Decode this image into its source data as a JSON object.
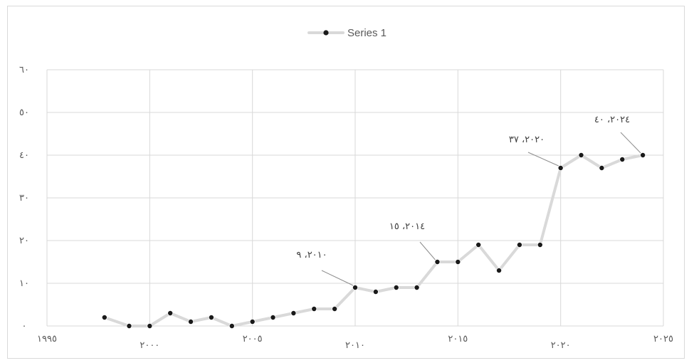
{
  "chart_data": {
    "type": "line",
    "title": "",
    "xlabel": "",
    "ylabel": "",
    "legend": {
      "placement": "top-center",
      "entries": [
        "Series 1"
      ]
    },
    "grid": true,
    "xlim": [
      1995,
      2025
    ],
    "ylim": [
      0,
      60
    ],
    "x_ticks": [
      1995,
      2000,
      2005,
      2010,
      2015,
      2020,
      2025
    ],
    "x_tick_labels": [
      "١٩٩٥",
      "٢٠٠٠",
      "٢٠٠٥",
      "٢٠١٠",
      "٢٠١٥",
      "٢٠٢٠",
      "٢٠٢٥"
    ],
    "y_ticks": [
      0,
      10,
      20,
      30,
      40,
      50,
      60
    ],
    "y_tick_labels": [
      "٠",
      "١٠",
      "٢٠",
      "٣٠",
      "٤٠",
      "٥٠",
      "٦٠"
    ],
    "colors": {
      "line": "#d9d9d9",
      "marker": "#1a1a1a",
      "grid": "#d9d9d9",
      "text": "#595959"
    },
    "series": [
      {
        "name": "Series 1",
        "points": [
          {
            "x": 1997.8,
            "y": 2
          },
          {
            "x": 1999,
            "y": 0
          },
          {
            "x": 2000,
            "y": 0
          },
          {
            "x": 2001,
            "y": 3
          },
          {
            "x": 2002,
            "y": 1
          },
          {
            "x": 2003,
            "y": 2
          },
          {
            "x": 2004,
            "y": 0
          },
          {
            "x": 2005,
            "y": 1
          },
          {
            "x": 2006,
            "y": 2
          },
          {
            "x": 2007,
            "y": 3
          },
          {
            "x": 2008,
            "y": 4
          },
          {
            "x": 2009,
            "y": 4
          },
          {
            "x": 2010,
            "y": 9
          },
          {
            "x": 2011,
            "y": 8
          },
          {
            "x": 2012,
            "y": 9
          },
          {
            "x": 2013,
            "y": 9
          },
          {
            "x": 2014,
            "y": 15
          },
          {
            "x": 2015,
            "y": 15
          },
          {
            "x": 2016,
            "y": 19
          },
          {
            "x": 2017,
            "y": 13
          },
          {
            "x": 2018,
            "y": 19
          },
          {
            "x": 2019,
            "y": 19
          },
          {
            "x": 2020,
            "y": 37
          },
          {
            "x": 2021,
            "y": 40
          },
          {
            "x": 2022,
            "y": 37
          },
          {
            "x": 2023,
            "y": 39
          },
          {
            "x": 2024,
            "y": 40
          }
        ]
      }
    ],
    "data_labels": [
      {
        "text": "٢٠١٠، ٩"
      },
      {
        "text": "٢٠١٤، ١٥"
      },
      {
        "text": "٢٠٢٠، ٣٧"
      },
      {
        "text": "٢٠٢٤، ٤٠"
      }
    ]
  }
}
